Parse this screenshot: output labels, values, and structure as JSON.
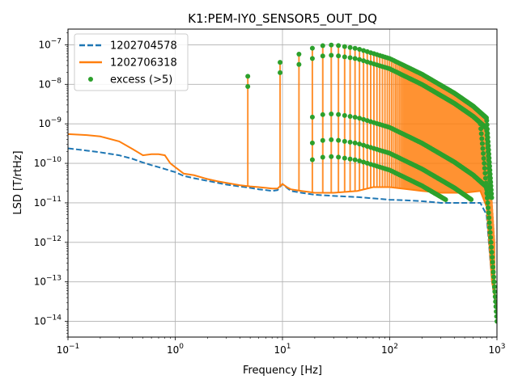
{
  "chart_data": {
    "type": "line",
    "title": "K1:PEM-IY0_SENSOR5_OUT_DQ",
    "xlabel": "Frequency [Hz]",
    "ylabel": "LSD [T/rtHz]",
    "xscale": "log",
    "yscale": "log",
    "xlim": [
      0.1,
      1000
    ],
    "ylim": [
      4e-15,
      2.5e-07
    ],
    "grid": true,
    "legend_position": "top-left",
    "x_ticks": [
      {
        "value": 0.1,
        "base": "10",
        "exp": "−1"
      },
      {
        "value": 1,
        "base": "10",
        "exp": "0"
      },
      {
        "value": 10,
        "base": "10",
        "exp": "1"
      },
      {
        "value": 100,
        "base": "10",
        "exp": "2"
      },
      {
        "value": 1000,
        "base": "10",
        "exp": "3"
      }
    ],
    "y_ticks": [
      {
        "value": 1e-14,
        "base": "10",
        "exp": "−14"
      },
      {
        "value": 1e-13,
        "base": "10",
        "exp": "−13"
      },
      {
        "value": 1e-12,
        "base": "10",
        "exp": "−12"
      },
      {
        "value": 1e-11,
        "base": "10",
        "exp": "−11"
      },
      {
        "value": 1e-10,
        "base": "10",
        "exp": "−10"
      },
      {
        "value": 1e-09,
        "base": "10",
        "exp": "−9"
      },
      {
        "value": 1e-08,
        "base": "10",
        "exp": "−8"
      },
      {
        "value": 1e-07,
        "base": "10",
        "exp": "−7"
      }
    ],
    "series": [
      {
        "name": "1202704578",
        "color": "#1f77b4",
        "style": "dashed",
        "x": [
          0.1,
          0.15,
          0.2,
          0.3,
          0.4,
          0.5,
          0.6,
          0.7,
          0.8,
          0.9,
          1.0,
          1.2,
          1.5,
          2,
          2.5,
          3,
          4,
          5,
          6,
          7,
          8,
          9,
          10,
          11,
          12,
          15,
          20,
          30,
          50,
          70,
          100,
          150,
          200,
          300,
          500,
          700,
          800,
          900,
          1000
        ],
        "y": [
          2.4e-10,
          2.1e-10,
          1.9e-10,
          1.6e-10,
          1.3e-10,
          1.05e-10,
          9e-11,
          8e-11,
          7.2e-11,
          6.5e-11,
          6e-11,
          4.8e-11,
          4.2e-11,
          3.6e-11,
          3.2e-11,
          2.9e-11,
          2.6e-11,
          2.4e-11,
          2.2e-11,
          2.1e-11,
          2e-11,
          2.1e-11,
          3e-11,
          2.4e-11,
          2e-11,
          1.8e-11,
          1.6e-11,
          1.5e-11,
          1.4e-11,
          1.3e-11,
          1.2e-11,
          1.15e-11,
          1.1e-11,
          1e-11,
          1e-11,
          1e-11,
          5e-12,
          1e-13,
          1.5e-14
        ]
      },
      {
        "name": "1202706318",
        "color": "#ff7f0e",
        "style": "solid",
        "x": [
          0.1,
          0.15,
          0.2,
          0.3,
          0.4,
          0.5,
          0.6,
          0.7,
          0.8,
          0.9,
          1.0,
          1.2,
          1.5,
          2,
          2.5,
          3,
          4,
          5,
          6,
          7,
          8,
          9,
          10,
          11,
          12,
          15,
          20,
          30,
          50,
          70,
          100,
          150,
          200,
          300,
          500,
          700,
          800,
          900,
          1000
        ],
        "y": [
          5.5e-10,
          5.2e-10,
          4.8e-10,
          3.6e-10,
          2.3e-10,
          1.6e-10,
          1.7e-10,
          1.7e-10,
          1.6e-10,
          1e-10,
          8e-11,
          5.5e-11,
          5e-11,
          4e-11,
          3.5e-11,
          3.2e-11,
          2.8e-11,
          2.6e-11,
          2.5e-11,
          2.4e-11,
          2.3e-11,
          2.3e-11,
          3e-11,
          2.5e-11,
          2.2e-11,
          2e-11,
          1.8e-11,
          1.8e-11,
          2e-11,
          2.5e-11,
          2.5e-11,
          2.2e-11,
          2e-11,
          1.8e-11,
          1.8e-11,
          2e-11,
          8e-12,
          1e-13,
          2e-14
        ]
      }
    ],
    "harmonics": {
      "fundamental_hz": 4.75,
      "count": 200,
      "peak_envelope": [
        {
          "x": 4.75,
          "y": 1.6e-08
        },
        {
          "x": 9.5,
          "y": 3.6e-08
        },
        {
          "x": 14.25,
          "y": 5.8e-08
        },
        {
          "x": 19,
          "y": 8.2e-08
        },
        {
          "x": 23.75,
          "y": 9.5e-08
        },
        {
          "x": 30,
          "y": 1e-07
        },
        {
          "x": 50,
          "y": 8e-08
        },
        {
          "x": 100,
          "y": 4.5e-08
        },
        {
          "x": 200,
          "y": 1.8e-08
        },
        {
          "x": 400,
          "y": 6e-09
        },
        {
          "x": 600,
          "y": 2.8e-09
        },
        {
          "x": 800,
          "y": 1.4e-09
        },
        {
          "x": 950,
          "y": 1e-12
        }
      ]
    },
    "excess_points": {
      "name": "excess (>5)",
      "color": "#2ca02c",
      "threshold": 5
    }
  }
}
